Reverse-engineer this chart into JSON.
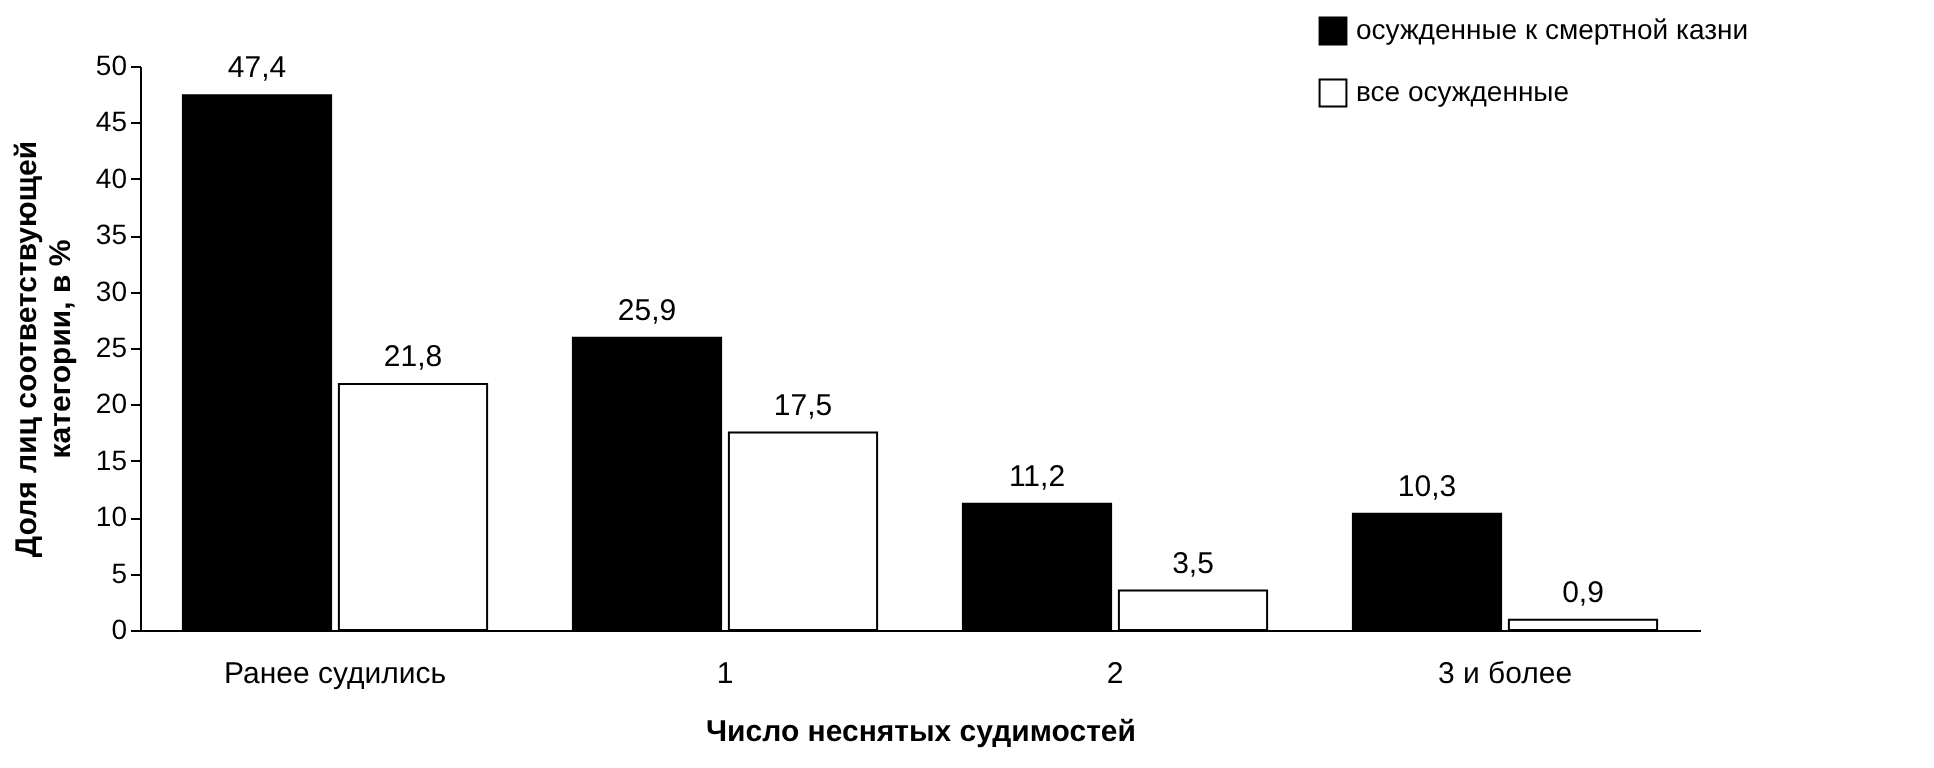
{
  "chart_data": {
    "type": "bar",
    "xlabel": "Число неснятых судимостей",
    "ylabel": "Доля лиц соответствующей категории, в %",
    "categories": [
      "Ранее судились",
      "1",
      "2",
      "3 и более"
    ],
    "series": [
      {
        "name": "осужденные к смертной казни",
        "color": "#000000",
        "values": [
          47.4,
          25.9,
          11.2,
          10.3
        ],
        "value_labels": [
          "47,4",
          "25,9",
          "11,2",
          "10,3"
        ]
      },
      {
        "name": "все осужденные",
        "color": "#ffffff",
        "values": [
          21.8,
          17.5,
          3.5,
          0.9
        ],
        "value_labels": [
          "21,8",
          "17,5",
          "3,5",
          "0,9"
        ]
      }
    ],
    "ylim": [
      0,
      50
    ],
    "yticks": [
      0,
      5,
      10,
      15,
      20,
      25,
      30,
      35,
      40,
      45,
      50
    ],
    "grid": false,
    "legend": "top right"
  }
}
